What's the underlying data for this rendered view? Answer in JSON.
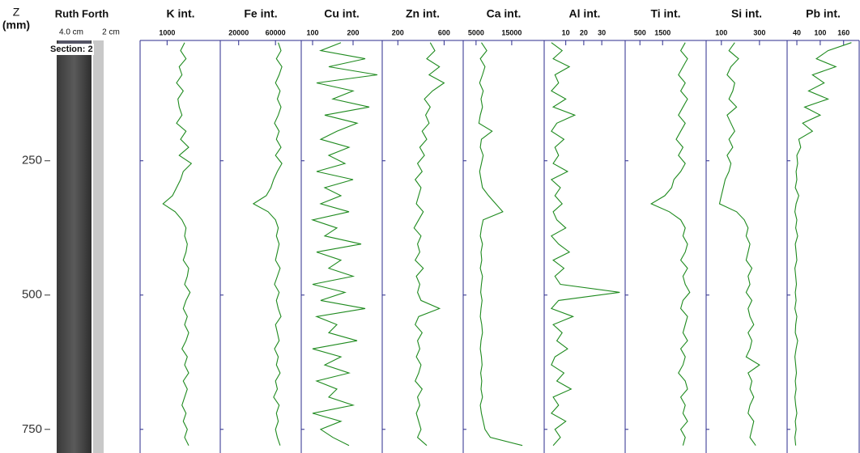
{
  "core": {
    "title": "Ruth Forth",
    "labels": [
      "4.0 cm",
      "2 cm"
    ],
    "section": "Section: 2"
  },
  "chart_data": {
    "type": "line",
    "y_label": "Z",
    "y_unit": "(mm)",
    "ylim": [
      26,
      794
    ],
    "yticks": [
      250,
      500,
      750
    ],
    "inverted": true,
    "color": "#1e8a1e",
    "y": [
      30,
      45,
      60,
      75,
      90,
      105,
      120,
      135,
      150,
      165,
      180,
      195,
      210,
      225,
      240,
      255,
      270,
      285,
      300,
      315,
      330,
      345,
      360,
      375,
      390,
      405,
      420,
      435,
      450,
      465,
      480,
      495,
      510,
      525,
      540,
      555,
      570,
      585,
      600,
      615,
      630,
      645,
      660,
      675,
      690,
      705,
      720,
      735,
      750,
      765,
      780
    ],
    "series": [
      {
        "name": "K int.",
        "xlim": [
          0,
          3000
        ],
        "xticks": [
          1000
        ],
        "values": [
          1650,
          1500,
          1700,
          1450,
          1550,
          1350,
          1600,
          1400,
          1450,
          1550,
          1350,
          1700,
          1500,
          1800,
          1450,
          1900,
          1600,
          1500,
          1350,
          1200,
          850,
          1300,
          1550,
          1700,
          1650,
          1750,
          1700,
          1600,
          1800,
          1750,
          1650,
          1850,
          1700,
          1600,
          1750,
          1650,
          1800,
          1700,
          1550,
          1750,
          1650,
          1800,
          1600,
          1750,
          1650,
          1550,
          1700,
          1600,
          1750,
          1650,
          1800
        ]
      },
      {
        "name": "Fe int.",
        "xlim": [
          0,
          88000
        ],
        "xticks": [
          20000,
          60000
        ],
        "values": [
          63000,
          66000,
          61000,
          67000,
          64000,
          60000,
          65000,
          62000,
          66000,
          63000,
          59000,
          64000,
          61000,
          66000,
          60000,
          67000,
          62000,
          58000,
          55000,
          50000,
          36000,
          52000,
          60000,
          63000,
          61000,
          64000,
          62000,
          60000,
          65000,
          62000,
          59000,
          64000,
          61000,
          63000,
          66000,
          60000,
          62000,
          64000,
          59000,
          63000,
          61000,
          65000,
          60000,
          62000,
          58000,
          64000,
          61000,
          63000,
          60000,
          62000,
          65000
        ]
      },
      {
        "name": "Cu int.",
        "xlim": [
          72,
          272
        ],
        "xticks": [
          100,
          200
        ],
        "values": [
          170,
          120,
          230,
          140,
          260,
          110,
          200,
          150,
          240,
          130,
          210,
          160,
          120,
          190,
          140,
          180,
          110,
          200,
          130,
          170,
          120,
          190,
          100,
          160,
          130,
          220,
          110,
          170,
          140,
          200,
          100,
          180,
          120,
          230,
          110,
          160,
          140,
          210,
          100,
          170,
          130,
          190,
          110,
          160,
          140,
          200,
          100,
          170,
          120,
          150,
          190
        ]
      },
      {
        "name": "Zn int.",
        "xlim": [
          65,
          765
        ],
        "xticks": [
          200,
          600
        ],
        "values": [
          480,
          520,
          450,
          560,
          470,
          600,
          500,
          430,
          480,
          440,
          470,
          410,
          450,
          390,
          430,
          370,
          410,
          350,
          400,
          380,
          360,
          420,
          380,
          340,
          400,
          370,
          390,
          350,
          420,
          360,
          390,
          370,
          400,
          560,
          380,
          350,
          410,
          370,
          390,
          360,
          400,
          380,
          350,
          410,
          370,
          390,
          360,
          380,
          400,
          370,
          450
        ]
      },
      {
        "name": "Ca int.",
        "xlim": [
          1400,
          24100
        ],
        "xticks": [
          5000,
          15000
        ],
        "values": [
          6500,
          8000,
          6200,
          7500,
          6800,
          6000,
          7000,
          6400,
          6800,
          6200,
          5800,
          9500,
          6500,
          6200,
          7000,
          6500,
          6000,
          6400,
          6800,
          8500,
          10500,
          12500,
          7000,
          6500,
          6200,
          6800,
          6400,
          6600,
          6200,
          6800,
          6500,
          6300,
          6700,
          6400,
          6200,
          6600,
          6800,
          6400,
          6200,
          6500,
          6700,
          6300,
          6600,
          6400,
          6800,
          6200,
          6500,
          7000,
          7500,
          9000,
          18000
        ]
      },
      {
        "name": "Al int.",
        "xlim": [
          -2,
          43
        ],
        "xticks": [
          10,
          20,
          30
        ],
        "values": [
          2,
          8,
          3,
          12,
          4,
          6,
          2,
          10,
          3,
          15,
          5,
          2,
          9,
          4,
          6,
          3,
          11,
          2,
          7,
          4,
          8,
          3,
          5,
          10,
          2,
          6,
          12,
          3,
          9,
          4,
          7,
          40,
          6,
          2,
          14,
          3,
          8,
          5,
          11,
          4,
          2,
          9,
          5,
          13,
          3,
          6,
          2,
          10,
          4,
          7,
          3
        ]
      },
      {
        "name": "Ti int.",
        "xlim": [
          -150,
          3420
        ],
        "xticks": [
          500,
          1500
        ],
        "values": [
          2500,
          2300,
          2600,
          2400,
          2200,
          2500,
          2300,
          2600,
          2400,
          2200,
          2500,
          2300,
          2100,
          2400,
          2200,
          2500,
          2300,
          2000,
          1900,
          1600,
          1000,
          1800,
          2300,
          2500,
          2400,
          2600,
          2500,
          2300,
          2600,
          2400,
          2500,
          2700,
          2400,
          2300,
          2600,
          2500,
          2400,
          2600,
          2300,
          2500,
          2400,
          2200,
          2500,
          2600,
          2300,
          2500,
          2400,
          2600,
          2300,
          2500,
          2400
        ]
      },
      {
        "name": "Si int.",
        "xlim": [
          20,
          445
        ],
        "xticks": [
          100,
          300
        ],
        "values": [
          170,
          140,
          190,
          150,
          130,
          170,
          160,
          140,
          180,
          130,
          150,
          170,
          140,
          160,
          130,
          150,
          140,
          120,
          110,
          100,
          90,
          180,
          220,
          240,
          230,
          250,
          240,
          230,
          260,
          240,
          250,
          230,
          260,
          240,
          250,
          270,
          240,
          260,
          250,
          230,
          300,
          240,
          260,
          250,
          270,
          250,
          240,
          270,
          260,
          250,
          280
        ]
      },
      {
        "name": "Pb int.",
        "xlim": [
          15,
          200
        ],
        "xticks": [
          40,
          100,
          160
        ],
        "values": [
          180,
          120,
          90,
          140,
          80,
          110,
          70,
          120,
          60,
          100,
          55,
          80,
          45,
          50,
          40,
          42,
          38,
          40,
          36,
          45,
          38,
          35,
          40,
          37,
          42,
          36,
          38,
          40,
          35,
          37,
          39,
          36,
          38,
          35,
          40,
          37,
          36,
          42,
          38,
          35,
          37,
          39,
          36,
          38,
          35,
          37,
          40,
          36,
          38,
          35,
          37
        ]
      }
    ]
  }
}
